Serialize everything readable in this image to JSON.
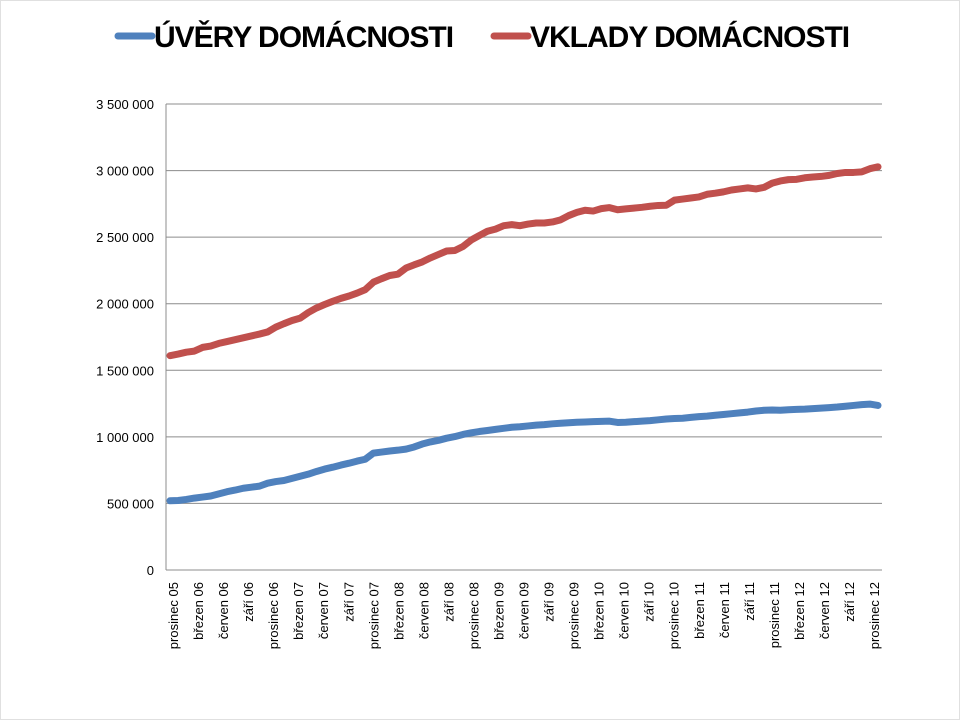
{
  "chart_data": {
    "type": "line",
    "title": "",
    "xlabel": "",
    "ylabel": "",
    "ylim": [
      0,
      3500000
    ],
    "y_ticks": [
      0,
      500000,
      1000000,
      1500000,
      2000000,
      2500000,
      3000000,
      3500000
    ],
    "y_tick_labels": [
      "0",
      "500 000",
      "1 000 000",
      "1 500 000",
      "2 000 000",
      "2 500 000",
      "3 000 000",
      "3 500 000"
    ],
    "grid": true,
    "legend_position": "top",
    "x_tick_labels": [
      "prosinec 05",
      "březen 06",
      "červen 06",
      "září 06",
      "prosinec 06",
      "březen 07",
      "červen 07",
      "září 07",
      "prosinec 07",
      "březen 08",
      "červen 08",
      "září 08",
      "prosinec 08",
      "březen 09",
      "červen 09",
      "září 09",
      "prosinec 09",
      "březen 10",
      "červen 10",
      "září 10",
      "prosinec 10",
      "březen 11",
      "červen 11",
      "září 11",
      "prosinec 11",
      "březen 12",
      "červen 12",
      "září 12",
      "prosinec 12"
    ],
    "series": [
      {
        "name": "ÚVĚRY DOMÁCNOSTI",
        "color": "#4f81bd",
        "values": [
          520000,
          522000,
          530000,
          540000,
          548000,
          556000,
          572000,
          588000,
          600000,
          614000,
          622000,
          630000,
          652000,
          664000,
          672000,
          688000,
          704000,
          720000,
          740000,
          758000,
          772000,
          788000,
          802000,
          818000,
          832000,
          878000,
          886000,
          894000,
          900000,
          908000,
          924000,
          946000,
          962000,
          974000,
          990000,
          1002000,
          1018000,
          1030000,
          1040000,
          1048000,
          1056000,
          1064000,
          1072000,
          1076000,
          1082000,
          1088000,
          1092000,
          1098000,
          1102000,
          1106000,
          1110000,
          1112000,
          1114000,
          1116000,
          1118000,
          1108000,
          1110000,
          1114000,
          1118000,
          1122000,
          1128000,
          1134000,
          1138000,
          1140000,
          1146000,
          1152000,
          1156000,
          1162000,
          1168000,
          1174000,
          1180000,
          1186000,
          1194000,
          1200000,
          1202000,
          1200000,
          1204000,
          1206000,
          1208000,
          1212000,
          1216000,
          1220000,
          1224000,
          1230000,
          1236000,
          1242000,
          1246000,
          1236000
        ]
      },
      {
        "name": "VKLADY DOMÁCNOSTI",
        "color": "#c0504d",
        "values": [
          1610000,
          1622000,
          1636000,
          1644000,
          1672000,
          1682000,
          1702000,
          1716000,
          1730000,
          1744000,
          1758000,
          1772000,
          1788000,
          1824000,
          1850000,
          1874000,
          1892000,
          1934000,
          1968000,
          1994000,
          2018000,
          2040000,
          2058000,
          2080000,
          2106000,
          2162000,
          2188000,
          2212000,
          2222000,
          2268000,
          2292000,
          2314000,
          2344000,
          2370000,
          2396000,
          2400000,
          2430000,
          2478000,
          2512000,
          2544000,
          2560000,
          2586000,
          2594000,
          2586000,
          2598000,
          2606000,
          2606000,
          2614000,
          2630000,
          2662000,
          2686000,
          2702000,
          2696000,
          2714000,
          2722000,
          2706000,
          2712000,
          2718000,
          2724000,
          2732000,
          2738000,
          2740000,
          2778000,
          2786000,
          2794000,
          2802000,
          2822000,
          2830000,
          2840000,
          2854000,
          2862000,
          2870000,
          2862000,
          2874000,
          2906000,
          2922000,
          2932000,
          2934000,
          2946000,
          2952000,
          2956000,
          2964000,
          2978000,
          2986000,
          2986000,
          2990000,
          3014000,
          3028000
        ]
      }
    ]
  }
}
